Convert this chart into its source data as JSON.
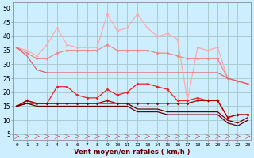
{
  "x": [
    0,
    1,
    2,
    3,
    4,
    5,
    6,
    7,
    8,
    9,
    10,
    11,
    12,
    13,
    14,
    15,
    16,
    17,
    18,
    19,
    20,
    21,
    22,
    23
  ],
  "line1": [
    36,
    35,
    33,
    37,
    43,
    37,
    36,
    36,
    36,
    48,
    42,
    43,
    48,
    43,
    40,
    41,
    39,
    17,
    36,
    35,
    36,
    25,
    24,
    23
  ],
  "line2": [
    36,
    34,
    32,
    32,
    34,
    35,
    35,
    35,
    35,
    37,
    35,
    35,
    35,
    35,
    34,
    34,
    33,
    32,
    32,
    32,
    32,
    25,
    24,
    23
  ],
  "line3": [
    36,
    33,
    28,
    27,
    27,
    27,
    27,
    27,
    27,
    27,
    27,
    27,
    27,
    27,
    27,
    27,
    27,
    27,
    27,
    27,
    27,
    25,
    24,
    23
  ],
  "line4": [
    15,
    17,
    16,
    16,
    22,
    22,
    19,
    18,
    18,
    21,
    19,
    20,
    23,
    23,
    22,
    21,
    17,
    17,
    18,
    17,
    17,
    11,
    12,
    12
  ],
  "line5": [
    15,
    17,
    16,
    16,
    16,
    16,
    16,
    16,
    16,
    17,
    16,
    16,
    16,
    16,
    16,
    16,
    16,
    16,
    17,
    17,
    17,
    11,
    12,
    12
  ],
  "line6": [
    15,
    16,
    16,
    16,
    16,
    16,
    16,
    16,
    16,
    16,
    16,
    16,
    14,
    14,
    14,
    13,
    13,
    13,
    13,
    13,
    13,
    10,
    9,
    11
  ],
  "line7": [
    15,
    16,
    15,
    15,
    15,
    15,
    15,
    15,
    15,
    15,
    15,
    15,
    13,
    13,
    13,
    12,
    12,
    12,
    12,
    12,
    12,
    9,
    8,
    10
  ],
  "bg_color": "#cceeff",
  "grid_color": "#aacccc",
  "col_pink_light": "#ffaaaa",
  "col_pink_med": "#ee8888",
  "col_pink_dark": "#dd6666",
  "col_red_bright": "#ee2222",
  "col_red_dark": "#aa0000",
  "col_dark": "#660000",
  "xlabel": "Vent moyen/en rafales ( km/h )",
  "ylim": [
    3,
    52
  ],
  "xlim": [
    -0.3,
    23.3
  ],
  "yticks": [
    5,
    10,
    15,
    20,
    25,
    30,
    35,
    40,
    45,
    50
  ],
  "figw": 3.2,
  "figh": 2.0,
  "dpi": 100
}
